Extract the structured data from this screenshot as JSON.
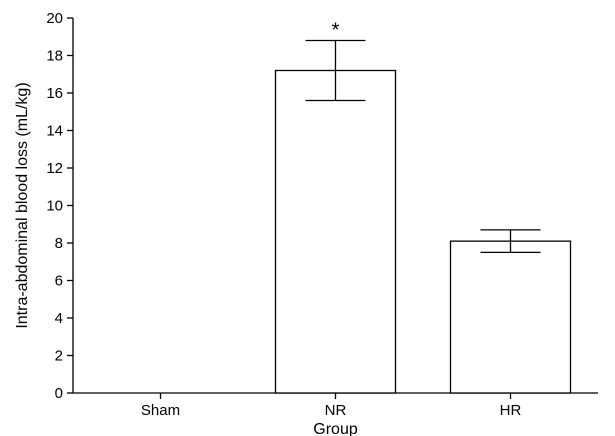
{
  "chart_data": {
    "type": "bar",
    "categories": [
      "Sham",
      "NR",
      "HR"
    ],
    "values": [
      0,
      17.2,
      8.1
    ],
    "errors_upper": [
      0,
      18.8,
      8.7
    ],
    "errors_lower": [
      0,
      15.6,
      7.5
    ],
    "annotations": [
      "",
      "*",
      ""
    ],
    "xlabel": "Group",
    "ylabel": "Intra-abdominal blood loss (mL/kg)",
    "ylim": [
      0,
      20
    ],
    "yticks": [
      "0",
      "2",
      "4",
      "6",
      "8",
      "10",
      "12",
      "14",
      "16",
      "18",
      "20"
    ],
    "grid": false,
    "bar_fill": "#ffffff",
    "stroke": "#000000"
  }
}
